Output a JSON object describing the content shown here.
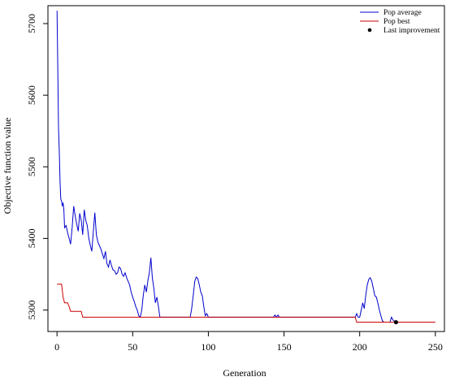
{
  "chart_data": {
    "type": "line",
    "xlabel": "Generation",
    "ylabel": "Objective function value",
    "xlim": [
      -6,
      256
    ],
    "ylim": [
      5270,
      5725
    ],
    "xticks": [
      0,
      50,
      100,
      150,
      200,
      250
    ],
    "yticks": [
      5300,
      5400,
      5500,
      5600,
      5700
    ],
    "legend_position": "top-right",
    "legend": [
      {
        "label": "Pop average",
        "kind": "line",
        "color": "#0000cc"
      },
      {
        "label": "Pop best",
        "kind": "line",
        "color": "#cc0000"
      },
      {
        "label": "Last improvement",
        "kind": "point",
        "color": "#000000"
      }
    ],
    "series": [
      {
        "name": "Pop average",
        "color": "#0000cc",
        "points": [
          [
            0,
            5718
          ],
          [
            0.5,
            5640
          ],
          [
            1,
            5555
          ],
          [
            1.5,
            5520
          ],
          [
            2,
            5480
          ],
          [
            2.5,
            5455
          ],
          [
            3,
            5452
          ],
          [
            3.5,
            5445
          ],
          [
            4,
            5450
          ],
          [
            4.5,
            5440
          ],
          [
            5,
            5415
          ],
          [
            6,
            5418
          ],
          [
            7,
            5408
          ],
          [
            8,
            5400
          ],
          [
            9,
            5392
          ],
          [
            10,
            5415
          ],
          [
            11,
            5445
          ],
          [
            12,
            5432
          ],
          [
            13,
            5420
          ],
          [
            14,
            5410
          ],
          [
            15,
            5435
          ],
          [
            16,
            5425
          ],
          [
            17,
            5405
          ],
          [
            18,
            5440
          ],
          [
            19,
            5425
          ],
          [
            20,
            5418
          ],
          [
            21,
            5400
          ],
          [
            22,
            5390
          ],
          [
            23,
            5382
          ],
          [
            24,
            5410
          ],
          [
            25,
            5436
          ],
          [
            26,
            5405
          ],
          [
            27,
            5395
          ],
          [
            28,
            5390
          ],
          [
            29,
            5385
          ],
          [
            30,
            5378
          ],
          [
            31,
            5372
          ],
          [
            32,
            5382
          ],
          [
            33,
            5365
          ],
          [
            34,
            5360
          ],
          [
            35,
            5370
          ],
          [
            36,
            5362
          ],
          [
            37,
            5356
          ],
          [
            38,
            5355
          ],
          [
            39,
            5350
          ],
          [
            40,
            5352
          ],
          [
            41,
            5360
          ],
          [
            42,
            5358
          ],
          [
            43,
            5350
          ],
          [
            44,
            5347
          ],
          [
            45,
            5352
          ],
          [
            46,
            5345
          ],
          [
            47,
            5340
          ],
          [
            48,
            5335
          ],
          [
            49,
            5325
          ],
          [
            50,
            5318
          ],
          [
            51,
            5312
          ],
          [
            52,
            5305
          ],
          [
            53,
            5300
          ],
          [
            54,
            5292
          ],
          [
            55,
            5290
          ],
          [
            56,
            5300
          ],
          [
            57,
            5320
          ],
          [
            58,
            5335
          ],
          [
            59,
            5325
          ],
          [
            60,
            5340
          ],
          [
            61,
            5352
          ],
          [
            62,
            5373
          ],
          [
            63,
            5345
          ],
          [
            64,
            5330
          ],
          [
            65,
            5310
          ],
          [
            66,
            5318
          ],
          [
            67,
            5305
          ],
          [
            68,
            5290
          ],
          [
            69,
            5290
          ],
          [
            88,
            5290
          ],
          [
            89,
            5302
          ],
          [
            90,
            5320
          ],
          [
            91,
            5340
          ],
          [
            92,
            5346
          ],
          [
            93,
            5344
          ],
          [
            94,
            5335
          ],
          [
            95,
            5325
          ],
          [
            96,
            5320
          ],
          [
            97,
            5305
          ],
          [
            98,
            5292
          ],
          [
            99,
            5295
          ],
          [
            100,
            5290
          ],
          [
            101,
            5290
          ],
          [
            143,
            5290
          ],
          [
            144,
            5293
          ],
          [
            145,
            5290
          ],
          [
            146,
            5293
          ],
          [
            147,
            5290
          ],
          [
            197,
            5290
          ],
          [
            198,
            5295
          ],
          [
            199,
            5290
          ],
          [
            200,
            5290
          ],
          [
            201,
            5300
          ],
          [
            202,
            5310
          ],
          [
            203,
            5302
          ],
          [
            204,
            5320
          ],
          [
            205,
            5335
          ],
          [
            206,
            5343
          ],
          [
            207,
            5345
          ],
          [
            208,
            5340
          ],
          [
            209,
            5330
          ],
          [
            210,
            5320
          ],
          [
            211,
            5318
          ],
          [
            212,
            5310
          ],
          [
            213,
            5300
          ],
          [
            214,
            5292
          ],
          [
            215,
            5285
          ],
          [
            216,
            5283
          ],
          [
            220,
            5283
          ],
          [
            221,
            5290
          ],
          [
            222,
            5286
          ],
          [
            224,
            5283
          ],
          [
            225,
            5283
          ]
        ]
      },
      {
        "name": "Pop best",
        "color": "#cc0000",
        "points": [
          [
            0,
            5336
          ],
          [
            1,
            5336
          ],
          [
            2,
            5336
          ],
          [
            3,
            5336
          ],
          [
            4,
            5318
          ],
          [
            5,
            5310
          ],
          [
            6,
            5310
          ],
          [
            7,
            5310
          ],
          [
            8,
            5305
          ],
          [
            9,
            5298
          ],
          [
            10,
            5298
          ],
          [
            11,
            5298
          ],
          [
            12,
            5298
          ],
          [
            13,
            5298
          ],
          [
            14,
            5298
          ],
          [
            15,
            5298
          ],
          [
            16,
            5298
          ],
          [
            17,
            5290
          ],
          [
            50,
            5290
          ],
          [
            100,
            5290
          ],
          [
            150,
            5290
          ],
          [
            196,
            5290
          ],
          [
            197,
            5290
          ],
          [
            198,
            5283
          ],
          [
            250,
            5283
          ]
        ]
      }
    ],
    "last_improvement": {
      "x": 224,
      "y": 5283
    }
  }
}
